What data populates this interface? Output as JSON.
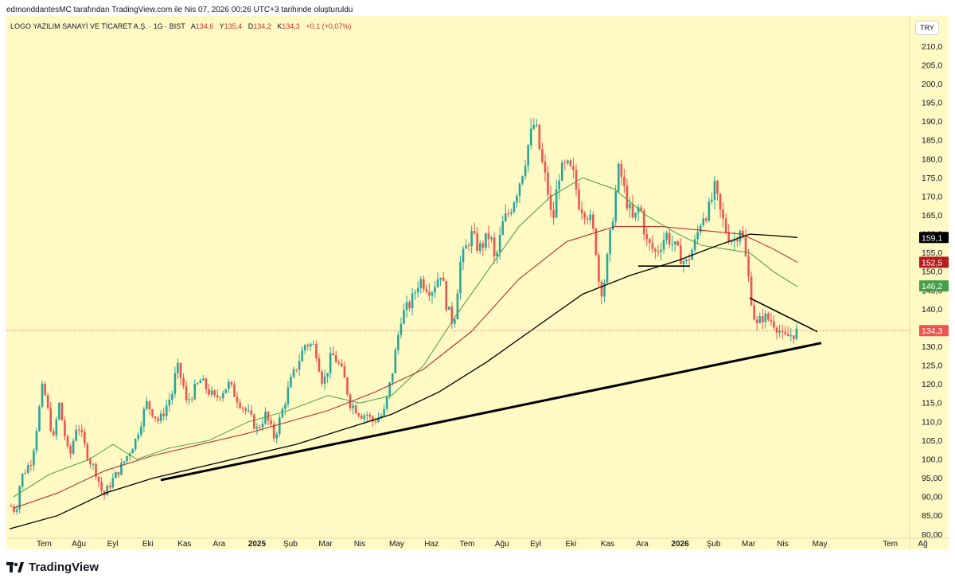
{
  "attribution": "edmonddantesMC tarafından TradingView.com ile Nis 07, 2026 00:26 UTC+3 tarihinde oluşturuldu",
  "symbol": {
    "name": "LOGO YAZILIM SANAYİ VE TİCARET A.Ş. · 1G · BIST",
    "open_label": "A",
    "open": "134,6",
    "high_label": "Y",
    "high": "135,4",
    "low_label": "D",
    "low": "134,2",
    "close_label": "K",
    "close": "134,3",
    "change": "+0,1 (+0,07%)"
  },
  "currency": "TRY",
  "logo_text": "TradingView",
  "colors": {
    "background": "#fff9c4",
    "up": "#26a69a",
    "down": "#ef5350",
    "ma_fast": "#43a047",
    "ma_mid": "#b71c1c",
    "ma_slow": "#000000"
  },
  "chart_data": {
    "type": "candlestick",
    "y_range": [
      79,
      216
    ],
    "y_ticks": [
      "210,0",
      "205,0",
      "200,0",
      "195,0",
      "190,0",
      "185,0",
      "180,0",
      "175,0",
      "170,0",
      "165,0",
      "160,0",
      "155,0",
      "150,0",
      "145,0",
      "140,0",
      "135,0",
      "130,0",
      "125,0",
      "120,0",
      "115,0",
      "110,0",
      "105,0",
      "100,0",
      "95,00",
      "90,00",
      "85,00",
      "80,00"
    ],
    "x_ticks": [
      "Tem",
      "Ağu",
      "Eyl",
      "Eki",
      "Kas",
      "Ara",
      "2025",
      "Şub",
      "Mar",
      "Nis",
      "May",
      "Haz",
      "Tem",
      "Ağu",
      "Eyl",
      "Eki",
      "Kas",
      "Ara",
      "2026",
      "Şub",
      "Mar",
      "Nis",
      "May",
      "",
      "Tem",
      "Ağ"
    ],
    "x_ticks_bold": [
      "2025",
      "2026"
    ],
    "price_anchors": [
      [
        0,
        88
      ],
      [
        8,
        86
      ],
      [
        14,
        95
      ],
      [
        28,
        100
      ],
      [
        42,
        120
      ],
      [
        55,
        105
      ],
      [
        62,
        115
      ],
      [
        75,
        100
      ],
      [
        85,
        110
      ],
      [
        95,
        103
      ],
      [
        100,
        100
      ],
      [
        108,
        97
      ],
      [
        118,
        90
      ],
      [
        125,
        93
      ],
      [
        140,
        98
      ],
      [
        158,
        105
      ],
      [
        172,
        115
      ],
      [
        188,
        110
      ],
      [
        205,
        118
      ],
      [
        210,
        125
      ],
      [
        218,
        120
      ],
      [
        222,
        115
      ],
      [
        240,
        121
      ],
      [
        258,
        116
      ],
      [
        275,
        120
      ],
      [
        290,
        115
      ],
      [
        300,
        112
      ],
      [
        311,
        108
      ],
      [
        322,
        112
      ],
      [
        332,
        106
      ],
      [
        336,
        108
      ],
      [
        352,
        120
      ],
      [
        372,
        131
      ],
      [
        384,
        130
      ],
      [
        394,
        120
      ],
      [
        405,
        128
      ],
      [
        412,
        126
      ],
      [
        420,
        122
      ],
      [
        428,
        115
      ],
      [
        442,
        112
      ],
      [
        450,
        112
      ],
      [
        455,
        110
      ],
      [
        470,
        112
      ],
      [
        480,
        122
      ],
      [
        492,
        138
      ],
      [
        505,
        142
      ],
      [
        515,
        148
      ],
      [
        530,
        145
      ],
      [
        542,
        150
      ],
      [
        550,
        140
      ],
      [
        558,
        136
      ],
      [
        566,
        152
      ],
      [
        580,
        160
      ],
      [
        590,
        156
      ],
      [
        604,
        160
      ],
      [
        610,
        152
      ],
      [
        620,
        163
      ],
      [
        628,
        166
      ],
      [
        638,
        172
      ],
      [
        646,
        178
      ],
      [
        652,
        184
      ],
      [
        660,
        190
      ],
      [
        668,
        180
      ],
      [
        676,
        172
      ],
      [
        682,
        162
      ],
      [
        690,
        176
      ],
      [
        700,
        178
      ],
      [
        708,
        176
      ],
      [
        716,
        168
      ],
      [
        728,
        165
      ],
      [
        736,
        158
      ],
      [
        742,
        144
      ],
      [
        748,
        148
      ],
      [
        758,
        165
      ],
      [
        766,
        178
      ],
      [
        774,
        170
      ],
      [
        784,
        163
      ],
      [
        792,
        168
      ],
      [
        800,
        158
      ],
      [
        812,
        155
      ],
      [
        825,
        160
      ],
      [
        840,
        155
      ],
      [
        850,
        152
      ],
      [
        862,
        158
      ],
      [
        870,
        165
      ],
      [
        878,
        166
      ],
      [
        886,
        172
      ],
      [
        894,
        165
      ],
      [
        902,
        160
      ],
      [
        910,
        158
      ],
      [
        918,
        162
      ],
      [
        922,
        158
      ],
      [
        932,
        143
      ],
      [
        938,
        135
      ],
      [
        946,
        138
      ],
      [
        958,
        137
      ],
      [
        966,
        135
      ],
      [
        972,
        132
      ],
      [
        980,
        133
      ],
      [
        990,
        134
      ]
    ],
    "series": [
      {
        "name": "",
        "color": "#43a047",
        "points": [
          [
            5,
            90
          ],
          [
            50,
            96
          ],
          [
            100,
            100
          ],
          [
            130,
            104
          ],
          [
            160,
            100
          ],
          [
            200,
            103
          ],
          [
            250,
            105
          ],
          [
            300,
            110
          ],
          [
            350,
            113
          ],
          [
            400,
            117
          ],
          [
            440,
            115
          ],
          [
            480,
            117
          ],
          [
            520,
            125
          ],
          [
            560,
            138
          ],
          [
            600,
            150
          ],
          [
            640,
            162
          ],
          [
            680,
            170
          ],
          [
            720,
            175
          ],
          [
            760,
            172
          ],
          [
            800,
            165
          ],
          [
            840,
            160
          ],
          [
            870,
            157
          ],
          [
            900,
            156
          ],
          [
            930,
            155
          ],
          [
            960,
            150
          ],
          [
            990,
            146
          ]
        ]
      },
      {
        "name": "",
        "color": "#b71c1c",
        "points": [
          [
            5,
            87
          ],
          [
            60,
            91
          ],
          [
            120,
            97
          ],
          [
            180,
            101
          ],
          [
            240,
            104
          ],
          [
            300,
            107
          ],
          [
            350,
            110
          ],
          [
            400,
            113
          ],
          [
            460,
            118
          ],
          [
            520,
            124
          ],
          [
            580,
            134
          ],
          [
            640,
            148
          ],
          [
            700,
            158
          ],
          [
            760,
            162
          ],
          [
            820,
            162
          ],
          [
            870,
            161
          ],
          [
            920,
            160
          ],
          [
            960,
            156
          ],
          [
            990,
            152.5
          ]
        ]
      },
      {
        "name": "",
        "color": "#000000",
        "points": [
          [
            0,
            81.5
          ],
          [
            60,
            85
          ],
          [
            120,
            91
          ],
          [
            180,
            95
          ],
          [
            240,
            98
          ],
          [
            300,
            101
          ],
          [
            360,
            104
          ],
          [
            420,
            108
          ],
          [
            480,
            112
          ],
          [
            540,
            118
          ],
          [
            600,
            126
          ],
          [
            660,
            135
          ],
          [
            720,
            144
          ],
          [
            780,
            149
          ],
          [
            840,
            153
          ],
          [
            890,
            157
          ],
          [
            930,
            160
          ],
          [
            960,
            159.6
          ],
          [
            990,
            159.1
          ]
        ]
      }
    ],
    "trendlines": [
      {
        "from": [
          190,
          94.5
        ],
        "to": [
          1020,
          131
        ]
      },
      {
        "from": [
          930,
          143
        ],
        "to": [
          1015,
          134
        ]
      },
      {
        "from": [
          790,
          151.5
        ],
        "to": [
          855,
          151.5
        ]
      }
    ],
    "price_labels": [
      {
        "value": 159.1,
        "text": "159,1",
        "bg": "#000000",
        "fg": "#ffffff"
      },
      {
        "value": 152.5,
        "text": "152,5",
        "bg": "#b71c1c",
        "fg": "#ffffff"
      },
      {
        "value": 146.2,
        "text": "146,2",
        "bg": "#43a047",
        "fg": "#ffffff"
      },
      {
        "value": 134.3,
        "text": "134,3",
        "bg": "#ef5350",
        "fg": "#ffffff"
      }
    ],
    "last_price": 134.3
  }
}
